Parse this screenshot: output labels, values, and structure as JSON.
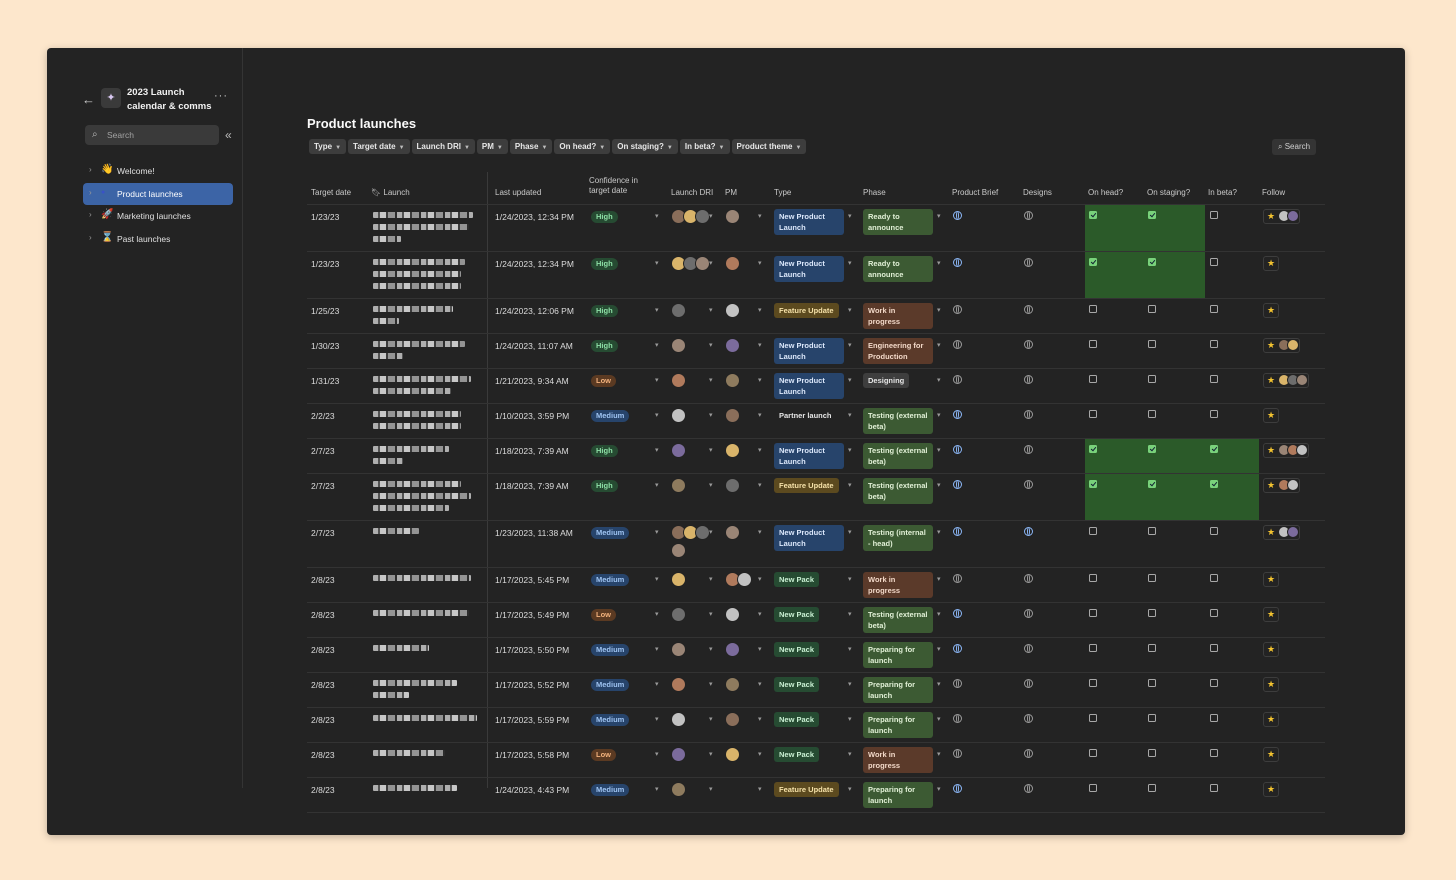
{
  "workspace": {
    "back_icon": "back-arrow-icon",
    "title": "2023 Launch calendar & comms",
    "more_icon": "more-icon"
  },
  "sidebar": {
    "search_placeholder": "Search",
    "items": [
      {
        "label": "Welcome!",
        "emoji": "👋",
        "active": false
      },
      {
        "label": "Product launches",
        "emoji": "●",
        "active": true
      },
      {
        "label": "Marketing launches",
        "emoji": "🚀",
        "active": false
      },
      {
        "label": "Past launches",
        "emoji": "⌛",
        "active": false
      }
    ]
  },
  "page": {
    "title": "Product launches",
    "search_label": "Search",
    "filters": [
      "Type",
      "Target date",
      "Launch DRI",
      "PM",
      "Phase",
      "On head?",
      "On staging?",
      "In beta?",
      "Product theme"
    ]
  },
  "columns": {
    "target_date": "Target date",
    "launch": "Launch",
    "last_updated": "Last updated",
    "confidence": "Confidence in target date",
    "launch_dri": "Launch DRI",
    "pm": "PM",
    "type": "Type",
    "phase": "Phase",
    "product_brief": "Product Brief",
    "designs": "Designs",
    "on_head": "On head?",
    "on_staging": "On staging?",
    "in_beta": "In beta?",
    "follow": "Follow"
  },
  "rows": [
    {
      "date": "1/23/23",
      "updated": "1/24/2023, 12:34 PM",
      "confidence": "High",
      "type": "New Product Launch",
      "phase": "Ready to announce",
      "head": true,
      "staging": true,
      "beta": false
    },
    {
      "date": "1/23/23",
      "updated": "1/24/2023, 12:34 PM",
      "confidence": "High",
      "type": "New Product Launch",
      "phase": "Ready to announce",
      "head": true,
      "staging": true,
      "beta": false
    },
    {
      "date": "1/25/23",
      "updated": "1/24/2023, 12:06 PM",
      "confidence": "High",
      "type": "Feature Update",
      "phase": "Work in progress",
      "head": false,
      "staging": false,
      "beta": false
    },
    {
      "date": "1/30/23",
      "updated": "1/24/2023, 11:07 AM",
      "confidence": "High",
      "type": "New Product Launch",
      "phase": "Engineering for Production",
      "head": false,
      "staging": false,
      "beta": false
    },
    {
      "date": "1/31/23",
      "updated": "1/21/2023, 9:34 AM",
      "confidence": "Low",
      "type": "New Product Launch",
      "phase": "Designing",
      "head": false,
      "staging": false,
      "beta": false
    },
    {
      "date": "2/2/23",
      "updated": "1/10/2023, 3:59 PM",
      "confidence": "Medium",
      "type": "Partner launch",
      "phase": "Testing (external beta)",
      "head": false,
      "staging": false,
      "beta": false
    },
    {
      "date": "2/7/23",
      "updated": "1/18/2023, 7:39 AM",
      "confidence": "High",
      "type": "New Product Launch",
      "phase": "Testing (external beta)",
      "head": true,
      "staging": true,
      "beta": true
    },
    {
      "date": "2/7/23",
      "updated": "1/18/2023, 7:39 AM",
      "confidence": "High",
      "type": "Feature Update",
      "phase": "Testing (external beta)",
      "head": true,
      "staging": true,
      "beta": true
    },
    {
      "date": "2/7/23",
      "updated": "1/23/2023, 11:38 AM",
      "confidence": "Medium",
      "type": "New Product Launch",
      "phase": "Testing (internal - head)",
      "head": false,
      "staging": false,
      "beta": false
    },
    {
      "date": "2/8/23",
      "updated": "1/17/2023, 5:45 PM",
      "confidence": "Medium",
      "type": "New Pack",
      "phase": "Work in progress",
      "head": false,
      "staging": false,
      "beta": false
    },
    {
      "date": "2/8/23",
      "updated": "1/17/2023, 5:49 PM",
      "confidence": "Low",
      "type": "New Pack",
      "phase": "Testing (external beta)",
      "head": false,
      "staging": false,
      "beta": false
    },
    {
      "date": "2/8/23",
      "updated": "1/17/2023, 5:50 PM",
      "confidence": "Medium",
      "type": "New Pack",
      "phase": "Preparing for launch",
      "head": false,
      "staging": false,
      "beta": false
    },
    {
      "date": "2/8/23",
      "updated": "1/17/2023, 5:52 PM",
      "confidence": "Medium",
      "type": "New Pack",
      "phase": "Preparing for launch",
      "head": false,
      "staging": false,
      "beta": false
    },
    {
      "date": "2/8/23",
      "updated": "1/17/2023, 5:59 PM",
      "confidence": "Medium",
      "type": "New Pack",
      "phase": "Preparing for launch",
      "head": false,
      "staging": false,
      "beta": false
    },
    {
      "date": "2/8/23",
      "updated": "1/17/2023, 5:58 PM",
      "confidence": "Low",
      "type": "New Pack",
      "phase": "Work in progress",
      "head": false,
      "staging": false,
      "beta": false
    },
    {
      "date": "2/8/23",
      "updated": "1/24/2023, 4:43 PM",
      "confidence": "Medium",
      "type": "Feature Update",
      "phase": "Preparing for launch",
      "head": false,
      "staging": false,
      "beta": false
    }
  ],
  "colors": {
    "accent": "#3c64a6",
    "check_green": "#79d27b",
    "cell_green": "#2b5a29",
    "star": "#f4c430"
  }
}
